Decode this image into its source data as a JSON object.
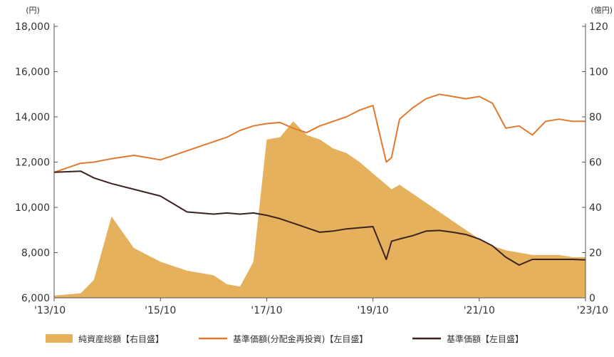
{
  "chart_data": {
    "type": "line",
    "units": {
      "left": "(円)",
      "right": "(億円)"
    },
    "x_ticks": [
      "'13/10",
      "'15/10",
      "'17/10",
      "'19/10",
      "'21/10",
      "'23/10"
    ],
    "y_left": {
      "min": 6000,
      "max": 18000,
      "ticks": [
        "6,000",
        "8,000",
        "10,000",
        "12,000",
        "14,000",
        "16,000",
        "18,000"
      ]
    },
    "y_right": {
      "min": 0,
      "max": 120,
      "ticks": [
        "0",
        "20",
        "40",
        "60",
        "80",
        "100",
        "120"
      ]
    },
    "x": [
      2013.75,
      2014.25,
      2014.5,
      2014.83,
      2015.25,
      2015.75,
      2016.25,
      2016.75,
      2017.0,
      2017.25,
      2017.5,
      2017.75,
      2018.0,
      2018.25,
      2018.5,
      2018.75,
      2019.0,
      2019.25,
      2019.5,
      2019.75,
      2020.0,
      2020.1,
      2020.25,
      2020.5,
      2020.75,
      2021.0,
      2021.25,
      2021.5,
      2021.75,
      2022.0,
      2022.25,
      2022.5,
      2022.75,
      2023.0,
      2023.25,
      2023.5,
      2023.75
    ],
    "series": [
      {
        "name": "純資産総額【右目盛】",
        "axis": "right",
        "color": "#e6b15c",
        "values": [
          1,
          2,
          8,
          36,
          22,
          16,
          12,
          10,
          6,
          5,
          16,
          70,
          71,
          78,
          72,
          70,
          66,
          64,
          60,
          55,
          50,
          48,
          50,
          46,
          42,
          38,
          34,
          30,
          26,
          23,
          21,
          20,
          19,
          19,
          19,
          18,
          18
        ]
      },
      {
        "name": "基準価額(分配金再投資)【左目盛】",
        "axis": "left",
        "color": "#e07a2e",
        "values": [
          11550,
          11950,
          12000,
          12150,
          12300,
          12100,
          12500,
          12900,
          13100,
          13400,
          13600,
          13700,
          13750,
          13500,
          13300,
          13600,
          13800,
          14000,
          14300,
          14500,
          12000,
          12200,
          13900,
          14400,
          14800,
          15000,
          14900,
          14800,
          14900,
          14600,
          13500,
          13600,
          13200,
          13800,
          13900,
          13800,
          13800
        ]
      },
      {
        "name": "基準価額【左目盛】",
        "axis": "left",
        "color": "#3b2320",
        "values": [
          11550,
          11600,
          11300,
          11050,
          10800,
          10500,
          9800,
          9700,
          9750,
          9700,
          9750,
          9650,
          9500,
          9300,
          9100,
          8900,
          8950,
          9050,
          9100,
          9150,
          7700,
          8500,
          8600,
          8750,
          8950,
          8980,
          8900,
          8800,
          8600,
          8300,
          7800,
          7450,
          7700,
          7700,
          7700,
          7700,
          7680
        ]
      }
    ],
    "legend_position": "bottom",
    "grid": false
  }
}
